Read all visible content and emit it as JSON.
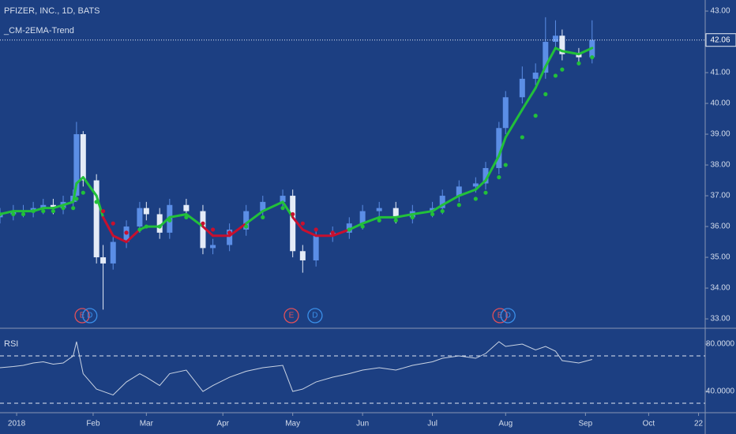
{
  "chart_data": [
    {
      "type": "candlestick",
      "title": "PFIZER, INC., 1D, BATS",
      "subtitle": "_CM-2EMA-Trend",
      "x": [
        -7,
        -3,
        0,
        3,
        6,
        9,
        12,
        15,
        16,
        18,
        22,
        24,
        27,
        31,
        35,
        37,
        41,
        44,
        49,
        54,
        57,
        62,
        67,
        72,
        78,
        81,
        84,
        88,
        93,
        98,
        102,
        107,
        112,
        117,
        123,
        126,
        131,
        136,
        139,
        143,
        145,
        150,
        154,
        157,
        160,
        162,
        167,
        171
      ],
      "open": [
        36.3,
        36.4,
        36.5,
        36.5,
        36.6,
        36.7,
        36.6,
        36.8,
        37.0,
        39.0,
        37.5,
        35.0,
        34.8,
        35.5,
        36.0,
        36.6,
        36.4,
        35.8,
        36.7,
        36.5,
        35.3,
        35.4,
        35.9,
        36.5,
        36.8,
        37.0,
        35.2,
        34.9,
        35.7,
        35.8,
        36.1,
        36.5,
        36.6,
        36.3,
        36.5,
        36.6,
        37.0,
        37.3,
        37.4,
        37.9,
        39.2,
        40.2,
        40.8,
        41.0,
        42.0,
        42.2,
        41.6,
        41.5
      ],
      "high": [
        36.6,
        36.7,
        36.7,
        36.8,
        36.9,
        36.9,
        37.0,
        37.2,
        39.4,
        39.1,
        37.7,
        35.4,
        35.7,
        36.2,
        36.8,
        36.8,
        36.6,
        36.9,
        36.9,
        36.7,
        35.6,
        36.1,
        36.7,
        37.0,
        37.2,
        37.2,
        35.4,
        35.9,
        36.0,
        36.3,
        36.7,
        36.8,
        36.8,
        36.7,
        36.8,
        37.2,
        37.5,
        37.6,
        38.1,
        39.4,
        40.4,
        41.2,
        41.3,
        42.8,
        42.7,
        42.4,
        41.8,
        42.7
      ],
      "low": [
        36.1,
        36.2,
        36.3,
        36.3,
        36.4,
        36.4,
        36.4,
        36.6,
        36.8,
        37.3,
        34.8,
        33.3,
        34.6,
        35.3,
        35.8,
        36.2,
        35.6,
        35.6,
        36.3,
        35.1,
        35.1,
        35.2,
        35.7,
        36.3,
        36.6,
        35.0,
        34.5,
        34.7,
        35.5,
        35.6,
        35.9,
        36.3,
        36.1,
        36.1,
        36.3,
        36.4,
        36.8,
        37.1,
        37.2,
        37.7,
        39.0,
        40.0,
        40.6,
        40.8,
        41.8,
        41.4,
        41.3,
        41.3
      ],
      "close": [
        36.4,
        36.5,
        36.5,
        36.6,
        36.7,
        36.6,
        36.8,
        37.0,
        39.0,
        37.5,
        35.0,
        34.8,
        35.5,
        36.0,
        36.6,
        36.4,
        35.8,
        36.7,
        36.5,
        35.3,
        35.4,
        35.9,
        36.5,
        36.8,
        37.0,
        35.2,
        34.9,
        35.7,
        35.8,
        36.1,
        36.5,
        36.6,
        36.3,
        36.5,
        36.6,
        37.0,
        37.3,
        37.4,
        37.9,
        39.2,
        40.2,
        40.8,
        41.0,
        42.0,
        42.2,
        41.6,
        41.5,
        42.06
      ],
      "up_color": "#5b8ee6",
      "down_color": "#e4ebf7",
      "ema_fast": [
        36.4,
        36.5,
        36.5,
        36.5,
        36.6,
        36.6,
        36.7,
        36.8,
        37.4,
        37.6,
        37.0,
        36.3,
        35.7,
        35.5,
        35.9,
        36.0,
        36.0,
        36.3,
        36.4,
        36.0,
        35.7,
        35.7,
        36.1,
        36.5,
        36.8,
        36.3,
        35.9,
        35.7,
        35.7,
        35.9,
        36.1,
        36.3,
        36.3,
        36.4,
        36.5,
        36.7,
        37.0,
        37.2,
        37.5,
        38.3,
        38.9,
        39.8,
        40.5,
        41.2,
        41.8,
        41.7,
        41.6,
        41.8
      ],
      "ema_slow": [
        36.4,
        36.4,
        36.4,
        36.5,
        36.5,
        36.5,
        36.6,
        36.6,
        36.9,
        37.1,
        36.8,
        36.5,
        36.1,
        35.8,
        35.9,
        36.0,
        36.0,
        36.2,
        36.3,
        36.1,
        35.9,
        35.8,
        36.0,
        36.3,
        36.6,
        36.4,
        36.1,
        35.9,
        35.8,
        35.9,
        36.0,
        36.2,
        36.2,
        36.3,
        36.4,
        36.5,
        36.7,
        36.9,
        37.1,
        37.6,
        38.0,
        38.9,
        39.6,
        40.3,
        40.9,
        41.1,
        41.3,
        41.5
      ],
      "trend_up_color": "#22c03a",
      "trend_down_color": "#c8102e",
      "last_price": 42.06,
      "events": [
        {
          "x": 17.7,
          "label": "E",
          "color": "#e0505a"
        },
        {
          "x": 20,
          "label": "D",
          "color": "#3a8ee8"
        },
        {
          "x": 80.6,
          "label": "E",
          "color": "#e0505a"
        },
        {
          "x": 87.7,
          "label": "D",
          "color": "#3a8ee8"
        },
        {
          "x": 143.3,
          "label": "E",
          "color": "#e0505a"
        },
        {
          "x": 145.7,
          "label": "D",
          "color": "#3a8ee8"
        }
      ],
      "xlim": [
        -7,
        205
      ],
      "ylim": [
        32.72,
        43.36
      ],
      "yticks": [
        {
          "value": 33,
          "label": "33.00"
        },
        {
          "value": 34,
          "label": "34.00"
        },
        {
          "value": 35,
          "label": "35.00"
        },
        {
          "value": 36,
          "label": "36.00"
        },
        {
          "value": 37,
          "label": "37.00"
        },
        {
          "value": 38,
          "label": "38.00"
        },
        {
          "value": 39,
          "label": "39.00"
        },
        {
          "value": 40,
          "label": "40.00"
        },
        {
          "value": 41,
          "label": "41.00"
        },
        {
          "value": 43,
          "label": "43.00"
        }
      ]
    },
    {
      "type": "line",
      "title": "RSI",
      "color": "#c9d3e3",
      "x": [
        -7,
        -3,
        0,
        3,
        6,
        9,
        12,
        15,
        16,
        18,
        22,
        24,
        27,
        31,
        35,
        37,
        41,
        44,
        49,
        54,
        57,
        62,
        67,
        72,
        78,
        81,
        84,
        88,
        93,
        98,
        102,
        107,
        112,
        117,
        123,
        126,
        131,
        136,
        139,
        143,
        145,
        150,
        154,
        157,
        160,
        162,
        167,
        171
      ],
      "values": [
        60,
        61,
        62,
        64,
        65,
        63,
        64,
        70,
        82,
        55,
        42,
        40,
        37,
        48,
        55,
        52,
        45,
        55,
        58,
        40,
        45,
        52,
        57,
        60,
        62,
        40,
        42,
        48,
        52,
        55,
        58,
        60,
        58,
        62,
        65,
        68,
        70,
        68,
        72,
        82,
        78,
        80,
        75,
        78,
        74,
        66,
        64,
        67
      ],
      "levels": [
        70,
        30
      ],
      "xlim": [
        -7,
        205
      ],
      "ylim": [
        22.7,
        92
      ],
      "yticks": [
        {
          "value": 80,
          "label": "80.0000"
        },
        {
          "value": 40,
          "label": "40.0000"
        }
      ],
      "xticks": [
        {
          "value": -2,
          "label": "2018"
        },
        {
          "value": 21,
          "label": "Feb"
        },
        {
          "value": 37,
          "label": "Mar"
        },
        {
          "value": 60,
          "label": "Apr"
        },
        {
          "value": 81,
          "label": "May"
        },
        {
          "value": 102,
          "label": "Jun"
        },
        {
          "value": 123,
          "label": "Jul"
        },
        {
          "value": 145,
          "label": "Aug"
        },
        {
          "value": 169,
          "label": "Sep"
        },
        {
          "value": 188,
          "label": "Oct"
        },
        {
          "value": 203,
          "label": "22"
        }
      ]
    }
  ]
}
